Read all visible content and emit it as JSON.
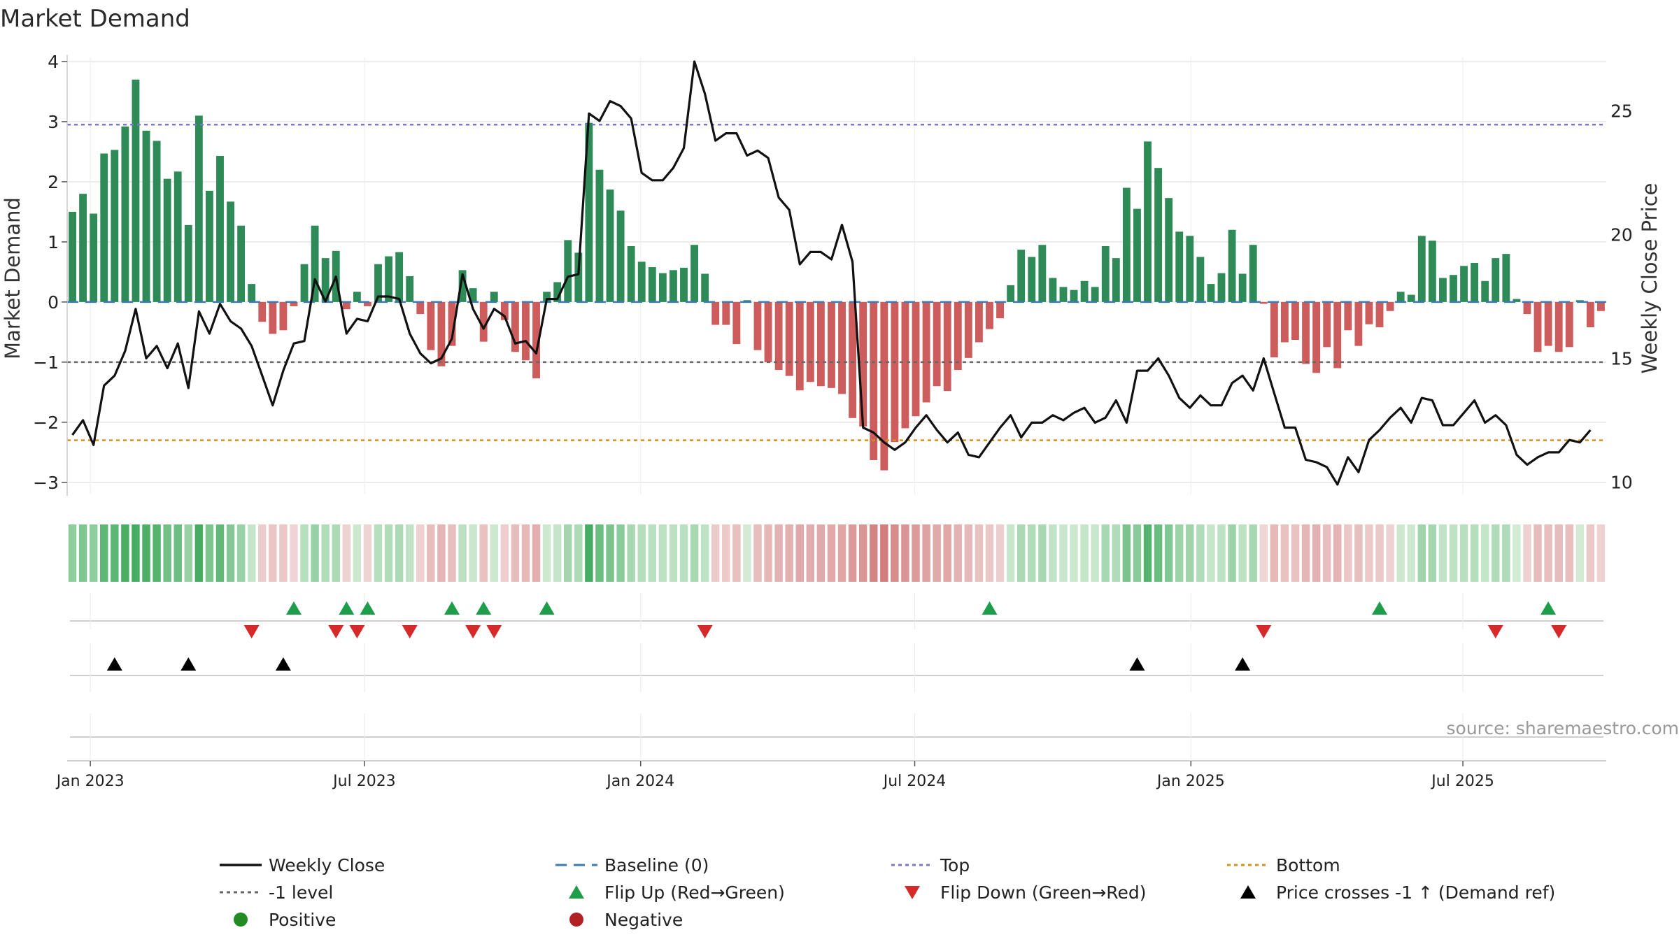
{
  "chart_data": {
    "type": "bar",
    "title": "Market Demand",
    "ylabel_left": "Market Demand",
    "ylabel_right": "Weekly Close Price",
    "ylim_left": [
      -3.2,
      4.0
    ],
    "ylim_right": [
      9.5,
      27.0
    ],
    "yticks_left": [
      4,
      3,
      2,
      1,
      0,
      -1,
      -2,
      -3
    ],
    "yticks_left_labels": [
      "4",
      "3",
      "2",
      "1",
      "0",
      "−1",
      "−2",
      "−3"
    ],
    "yticks_right": [
      25,
      20,
      15,
      10
    ],
    "yticks_right_labels": [
      "25",
      "20",
      "15",
      "10"
    ],
    "x_tick_labels": [
      "Jan 2023",
      "Jul 2023",
      "Jan 2024",
      "Jul 2024",
      "Jan 2025",
      "Jul 2025"
    ],
    "x_tick_weeks": [
      2.2,
      28.2,
      54.4,
      80.4,
      106.6,
      132.4
    ],
    "reference_lines": {
      "baseline": 0,
      "top": 2.95,
      "minus_one": -1,
      "bottom": -2.3
    },
    "demand": [
      1.5,
      1.8,
      1.47,
      2.47,
      2.53,
      2.92,
      3.7,
      2.85,
      2.68,
      2.05,
      2.17,
      1.28,
      3.1,
      1.85,
      2.43,
      1.67,
      1.27,
      0.3,
      -0.33,
      -0.53,
      -0.47,
      -0.07,
      0.63,
      1.27,
      0.73,
      0.85,
      -0.12,
      0.17,
      -0.07,
      0.63,
      0.76,
      0.83,
      0.43,
      -0.2,
      -0.8,
      -1.07,
      -0.73,
      0.53,
      0.23,
      -0.66,
      0.17,
      -0.3,
      -0.83,
      -0.97,
      -1.27,
      0.17,
      0.33,
      1.03,
      0.82,
      2.98,
      2.2,
      1.87,
      1.52,
      0.93,
      0.67,
      0.58,
      0.48,
      0.53,
      0.57,
      0.95,
      0.47,
      -0.38,
      -0.38,
      -0.7,
      0.03,
      -0.8,
      -1.0,
      -1.13,
      -1.23,
      -1.47,
      -1.33,
      -1.4,
      -1.43,
      -1.53,
      -1.93,
      -2.07,
      -2.63,
      -2.8,
      -2.33,
      -2.1,
      -1.9,
      -1.67,
      -1.4,
      -1.48,
      -1.13,
      -0.93,
      -0.67,
      -0.45,
      -0.27,
      0.28,
      0.87,
      0.75,
      0.95,
      0.4,
      0.25,
      0.2,
      0.35,
      0.25,
      0.93,
      0.73,
      1.9,
      1.55,
      2.67,
      2.23,
      1.73,
      1.17,
      1.1,
      0.75,
      0.3,
      0.48,
      1.2,
      0.47,
      0.95,
      -0.03,
      -0.92,
      -0.67,
      -0.63,
      -1.03,
      -1.18,
      -0.75,
      -1.1,
      -0.47,
      -0.73,
      -0.37,
      -0.42,
      -0.15,
      0.17,
      0.12,
      1.1,
      1.02,
      0.4,
      0.45,
      0.6,
      0.65,
      0.35,
      0.73,
      0.8,
      0.05,
      -0.2,
      -0.83,
      -0.73,
      -0.83,
      -0.75,
      0.03,
      -0.42,
      -0.15
    ],
    "close": [
      11.9,
      12.5,
      11.5,
      13.9,
      14.3,
      15.3,
      17.0,
      15.0,
      15.5,
      14.6,
      15.6,
      13.8,
      16.9,
      16.0,
      17.2,
      16.5,
      16.2,
      15.5,
      14.3,
      13.1,
      14.5,
      15.6,
      15.7,
      18.2,
      17.3,
      18.3,
      16.0,
      16.6,
      16.5,
      17.5,
      17.5,
      17.4,
      16.0,
      15.2,
      14.8,
      15.0,
      15.8,
      18.4,
      17.0,
      16.2,
      17.0,
      16.7,
      15.6,
      15.7,
      15.2,
      17.4,
      17.4,
      18.3,
      18.4,
      24.9,
      24.6,
      25.4,
      25.2,
      24.7,
      22.5,
      22.2,
      22.2,
      22.7,
      23.5,
      27.0,
      25.7,
      23.8,
      24.1,
      24.1,
      23.2,
      23.4,
      23.1,
      21.5,
      21.0,
      18.8,
      19.3,
      19.3,
      19.0,
      20.4,
      18.9,
      12.2,
      12.0,
      11.6,
      11.3,
      11.6,
      12.2,
      12.7,
      12.1,
      11.6,
      12.0,
      11.1,
      11.0,
      11.6,
      12.2,
      12.7,
      11.8,
      12.4,
      12.4,
      12.7,
      12.5,
      12.8,
      13.0,
      12.4,
      12.6,
      13.3,
      12.4,
      14.5,
      14.5,
      15.0,
      14.3,
      13.4,
      13.0,
      13.5,
      13.1,
      13.1,
      14.0,
      14.3,
      13.7,
      15.0,
      13.6,
      12.2,
      12.2,
      10.9,
      10.8,
      10.6,
      9.9,
      11.0,
      10.4,
      11.7,
      12.1,
      12.6,
      13.0,
      12.4,
      13.4,
      13.3,
      12.3,
      12.3,
      12.8,
      13.3,
      12.4,
      12.7,
      12.3,
      11.1,
      10.7,
      11.0,
      11.2,
      11.2,
      11.7,
      11.6,
      12.1
    ],
    "heat_strip_scale": {
      "positive_max": 3.0,
      "negative_max": 2.8
    },
    "flip_up_weeks": [
      21,
      26,
      28,
      36,
      39,
      45,
      87,
      124,
      140
    ],
    "flip_down_weeks": [
      17,
      25,
      27,
      32,
      38,
      40,
      60,
      113,
      135,
      141
    ],
    "price_cross_weeks": [
      4,
      11,
      20,
      101,
      111
    ],
    "source": "source: sharemaestro.com",
    "legend": [
      {
        "label": "Weekly Close",
        "kind": "line-solid",
        "color": "#111111"
      },
      {
        "label": "Baseline (0)",
        "kind": "line-dash",
        "color": "#3a7ab8"
      },
      {
        "label": "Top",
        "kind": "line-dot",
        "color": "#7b75d6"
      },
      {
        "label": "Bottom",
        "kind": "line-dot",
        "color": "#d4901e"
      },
      {
        "label": "-1 level",
        "kind": "line-dot",
        "color": "#666666"
      },
      {
        "label": "Flip Up (Red→Green)",
        "kind": "tri-up",
        "color": "#1e9e4a"
      },
      {
        "label": "Flip Down (Green→Red)",
        "kind": "tri-down",
        "color": "#d62a2a"
      },
      {
        "label": "Price crosses -1 ↑ (Demand ref)",
        "kind": "tri-up",
        "color": "#000000"
      },
      {
        "label": "Positive",
        "kind": "dot",
        "color": "#228b22"
      },
      {
        "label": "Negative",
        "kind": "dot",
        "color": "#b22222"
      }
    ]
  },
  "colors": {
    "positive_bar": "#2e8b57",
    "negative_bar": "#cd5c5c",
    "price_line": "#111111",
    "grid": "#e6e6e6"
  }
}
